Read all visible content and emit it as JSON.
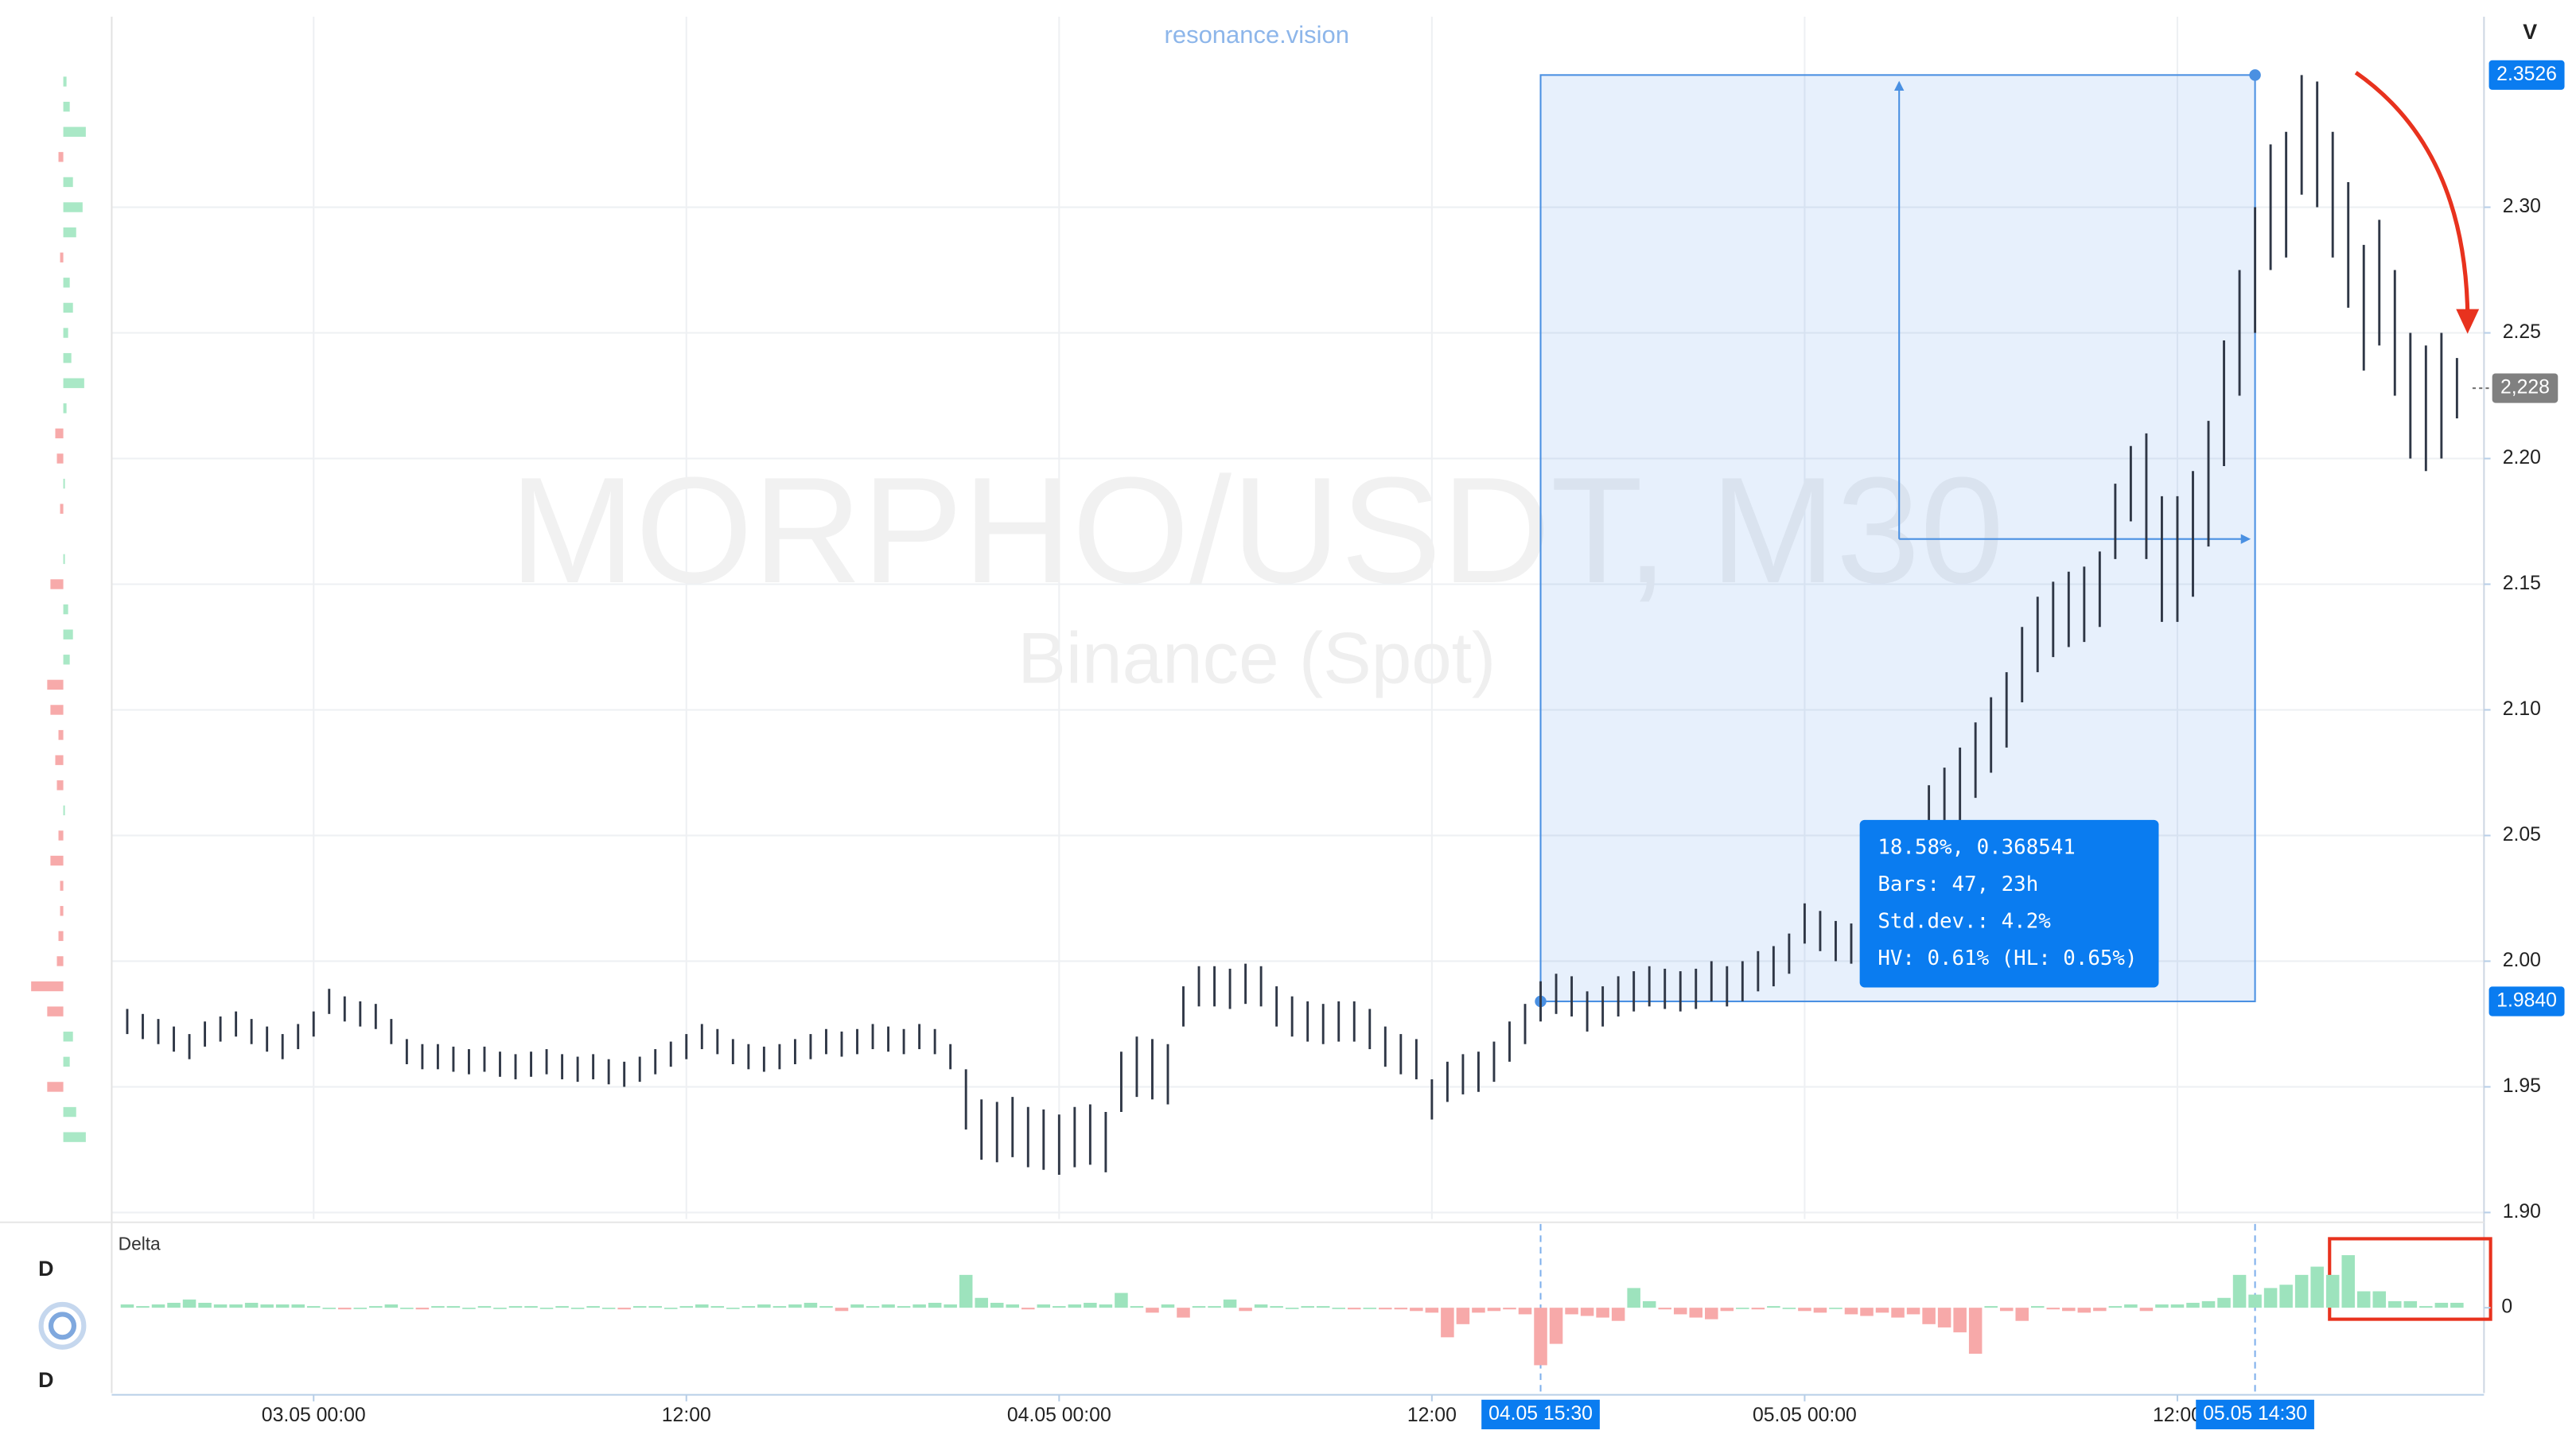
{
  "chart_data": {
    "type": "hilo",
    "title": "MORPHO/USDT, M30",
    "subtitle": "Binance (Spot)",
    "source": "resonance.vision",
    "corner_label": "V",
    "color": "#2f3746",
    "grid": true,
    "xlim": [
      -6.5,
      69.5
    ],
    "ylim": [
      1.8974,
      2.3758
    ],
    "xticks": [
      {
        "value": 0,
        "label": "03.05 00:00"
      },
      {
        "value": 12,
        "label": "12:00"
      },
      {
        "value": 24,
        "label": "04.05 00:00"
      },
      {
        "value": 36,
        "label": "12:00"
      },
      {
        "value": 48,
        "label": "05.05 00:00"
      },
      {
        "value": 60,
        "label": "12:00"
      }
    ],
    "yticks": [
      {
        "value": 1.9,
        "label": "1.90"
      },
      1.95,
      {
        "value": 2.0,
        "label": "2.00"
      },
      2.05,
      {
        "value": 2.1,
        "label": "2.10"
      },
      2.15,
      {
        "value": 2.2,
        "label": "2.20"
      },
      2.25,
      {
        "value": 2.3,
        "label": "2.30"
      }
    ],
    "x": [
      -6,
      -5.5,
      -5,
      -4.5,
      -4,
      -3.5,
      -3,
      -2.5,
      -2,
      -1.5,
      -1,
      -0.5,
      0,
      0.5,
      1,
      1.5,
      2,
      2.5,
      3,
      3.5,
      4,
      4.5,
      5,
      5.5,
      6,
      6.5,
      7,
      7.5,
      8,
      8.5,
      9,
      9.5,
      10,
      10.5,
      11,
      11.5,
      12,
      12.5,
      13,
      13.5,
      14,
      14.5,
      15,
      15.5,
      16,
      16.5,
      17,
      17.5,
      18,
      18.5,
      19,
      19.5,
      20,
      20.5,
      21,
      21.5,
      22,
      22.5,
      23,
      23.5,
      24,
      24.5,
      25,
      25.5,
      26,
      26.5,
      27,
      27.5,
      28,
      28.5,
      29,
      29.5,
      30,
      30.5,
      31,
      31.5,
      32,
      32.5,
      33,
      33.5,
      34,
      34.5,
      35,
      35.5,
      36,
      36.5,
      37,
      37.5,
      38,
      38.5,
      39,
      39.5,
      40,
      40.5,
      41,
      41.5,
      42,
      42.5,
      43,
      43.5,
      44,
      44.5,
      45,
      45.5,
      46,
      46.5,
      47,
      47.5,
      48,
      48.5,
      49,
      49.5,
      50,
      50.5,
      51,
      51.5,
      52,
      52.5,
      53,
      53.5,
      54,
      54.5,
      55,
      55.5,
      56,
      56.5,
      57,
      57.5,
      58,
      58.5,
      59,
      59.5,
      60,
      60.5,
      61,
      61.5,
      62,
      62.5,
      63,
      63.5,
      64,
      64.5,
      65,
      65.5,
      66,
      66.5,
      67,
      67.5,
      68,
      68.5,
      69
    ],
    "high": [
      1.981,
      1.979,
      1.977,
      1.974,
      1.971,
      1.976,
      1.978,
      1.98,
      1.977,
      1.974,
      1.971,
      1.975,
      1.98,
      1.989,
      1.986,
      1.984,
      1.983,
      1.977,
      1.969,
      1.967,
      1.967,
      1.966,
      1.965,
      1.966,
      1.964,
      1.963,
      1.964,
      1.965,
      1.963,
      1.962,
      1.963,
      1.961,
      1.96,
      1.962,
      1.965,
      1.968,
      1.971,
      1.975,
      1.973,
      1.969,
      1.967,
      1.966,
      1.967,
      1.969,
      1.971,
      1.973,
      1.972,
      1.973,
      1.975,
      1.974,
      1.973,
      1.975,
      1.973,
      1.967,
      1.957,
      1.945,
      1.944,
      1.946,
      1.942,
      1.941,
      1.939,
      1.942,
      1.943,
      1.94,
      1.964,
      1.97,
      1.969,
      1.967,
      1.99,
      1.998,
      1.998,
      1.997,
      1.999,
      1.998,
      1.99,
      1.986,
      1.984,
      1.983,
      1.984,
      1.984,
      1.981,
      1.974,
      1.971,
      1.969,
      1.953,
      1.96,
      1.963,
      1.964,
      1.968,
      1.976,
      1.983,
      1.992,
      1.995,
      1.994,
      1.988,
      1.99,
      1.994,
      1.996,
      1.998,
      1.997,
      1.996,
      1.997,
      2.0,
      1.998,
      2.0,
      2.004,
      2.006,
      2.011,
      2.023,
      2.02,
      2.016,
      2.015,
      2.014,
      2.018,
      2.028,
      2.055,
      2.07,
      2.077,
      2.085,
      2.095,
      2.105,
      2.115,
      2.133,
      2.145,
      2.151,
      2.155,
      2.157,
      2.163,
      2.19,
      2.205,
      2.21,
      2.185,
      2.185,
      2.195,
      2.215,
      2.247,
      2.275,
      2.3,
      2.325,
      2.33,
      2.3526,
      2.35,
      2.33,
      2.31,
      2.285,
      2.295,
      2.275,
      2.25,
      2.245,
      2.25,
      2.24
    ],
    "low": [
      1.971,
      1.969,
      1.967,
      1.964,
      1.961,
      1.966,
      1.968,
      1.97,
      1.967,
      1.964,
      1.961,
      1.965,
      1.97,
      1.979,
      1.976,
      1.974,
      1.973,
      1.967,
      1.959,
      1.957,
      1.957,
      1.956,
      1.955,
      1.956,
      1.954,
      1.953,
      1.954,
      1.955,
      1.953,
      1.952,
      1.953,
      1.951,
      1.95,
      1.952,
      1.955,
      1.958,
      1.961,
      1.965,
      1.963,
      1.959,
      1.957,
      1.956,
      1.957,
      1.959,
      1.961,
      1.963,
      1.962,
      1.963,
      1.965,
      1.964,
      1.963,
      1.965,
      1.963,
      1.957,
      1.933,
      1.921,
      1.92,
      1.922,
      1.918,
      1.917,
      1.915,
      1.918,
      1.919,
      1.916,
      1.94,
      1.946,
      1.945,
      1.943,
      1.974,
      1.982,
      1.982,
      1.981,
      1.983,
      1.982,
      1.974,
      1.97,
      1.968,
      1.967,
      1.968,
      1.968,
      1.965,
      1.958,
      1.955,
      1.953,
      1.937,
      1.944,
      1.947,
      1.948,
      1.952,
      1.96,
      1.967,
      1.976,
      1.979,
      1.978,
      1.972,
      1.974,
      1.978,
      1.98,
      1.982,
      1.981,
      1.98,
      1.981,
      1.984,
      1.982,
      1.984,
      1.988,
      1.99,
      1.995,
      2.007,
      2.004,
      2.0,
      1.999,
      1.998,
      2.002,
      2.012,
      2.025,
      2.04,
      2.047,
      2.055,
      2.065,
      2.075,
      2.085,
      2.103,
      2.115,
      2.121,
      2.125,
      2.127,
      2.133,
      2.16,
      2.175,
      2.16,
      2.135,
      2.135,
      2.145,
      2.165,
      2.197,
      2.225,
      2.25,
      2.275,
      2.28,
      2.305,
      2.3,
      2.28,
      2.26,
      2.235,
      2.245,
      2.225,
      2.2,
      2.195,
      2.2,
      2.216
    ],
    "x_markers": [
      {
        "value": 39.5,
        "label": "04.05 15:30"
      },
      {
        "value": 62.5,
        "label": "05.05 14:30"
      }
    ],
    "y_markers": [
      {
        "value": 2.3526,
        "label": "2.3526"
      },
      {
        "value": 1.984,
        "label": "1.9840"
      }
    ],
    "last_price": {
      "value": 2.228,
      "label": "2,228"
    },
    "measure_lines": [
      "18.58%, 0.368541",
      "Bars: 47, 23h",
      "Std.dev.: 4.2%",
      "HV: 0.61% (HL: 0.65%)"
    ],
    "volume_profile": {
      "pos_color": "#a9e8c6",
      "neg_color": "#f7aaaa",
      "xlim": [
        -22,
        25
      ],
      "prices": [
        2.35,
        2.34,
        2.33,
        2.32,
        2.31,
        2.3,
        2.29,
        2.28,
        2.27,
        2.26,
        2.25,
        2.24,
        2.23,
        2.22,
        2.21,
        2.2,
        2.19,
        2.18,
        2.17,
        2.16,
        2.15,
        2.14,
        2.13,
        2.12,
        2.11,
        2.1,
        2.09,
        2.08,
        2.07,
        2.06,
        2.05,
        2.04,
        2.03,
        2.02,
        2.01,
        2.0,
        1.99,
        1.98,
        1.97,
        1.96,
        1.95,
        1.94,
        1.93
      ],
      "values": [
        2,
        4,
        14,
        -3,
        6,
        12,
        8,
        -2,
        4,
        6,
        3,
        5,
        13,
        2,
        -5,
        -4,
        1,
        -2,
        0,
        1,
        -8,
        3,
        6,
        4,
        -10,
        -8,
        -3,
        -5,
        -4,
        1,
        -3,
        -8,
        -2,
        -2,
        -3,
        -4,
        -20,
        -10,
        6,
        4,
        -10,
        8,
        14
      ]
    },
    "delta": {
      "title": "Delta",
      "labels": [
        "D",
        "D"
      ],
      "pos_color": "#9de3bd",
      "neg_color": "#f7a9a9",
      "ylim": [
        -49,
        48
      ],
      "yticks": [
        0
      ],
      "values": [
        2,
        1,
        2,
        3,
        5,
        3,
        2,
        2,
        3,
        2,
        2,
        2,
        1,
        0,
        -1,
        0,
        1,
        2,
        0,
        -1,
        1,
        1,
        0,
        1,
        0,
        1,
        1,
        0,
        1,
        0,
        1,
        0,
        -1,
        1,
        1,
        0,
        1,
        2,
        1,
        0,
        1,
        2,
        1,
        2,
        3,
        1,
        -2,
        2,
        1,
        2,
        1,
        2,
        3,
        2,
        20,
        6,
        3,
        2,
        -1,
        2,
        1,
        2,
        3,
        2,
        9,
        1,
        -3,
        2,
        -6,
        1,
        1,
        5,
        -2,
        2,
        1,
        0,
        1,
        1,
        0,
        -1,
        0,
        -1,
        -1,
        -2,
        -3,
        -18,
        -10,
        -3,
        -2,
        -1,
        -4,
        -35,
        -22,
        -4,
        -5,
        -6,
        -8,
        12,
        4,
        -1,
        -4,
        -6,
        -7,
        -2,
        0,
        -1,
        1,
        0,
        -2,
        -3,
        0,
        -4,
        -5,
        -3,
        -6,
        -4,
        -10,
        -12,
        -15,
        -28,
        1,
        -2,
        -8,
        1,
        -1,
        -2,
        -3,
        -2,
        1,
        2,
        -2,
        2,
        2,
        3,
        4,
        6,
        20,
        8,
        12,
        14,
        20,
        25,
        20,
        32,
        10,
        10,
        4,
        4,
        1,
        3,
        3
      ]
    }
  }
}
